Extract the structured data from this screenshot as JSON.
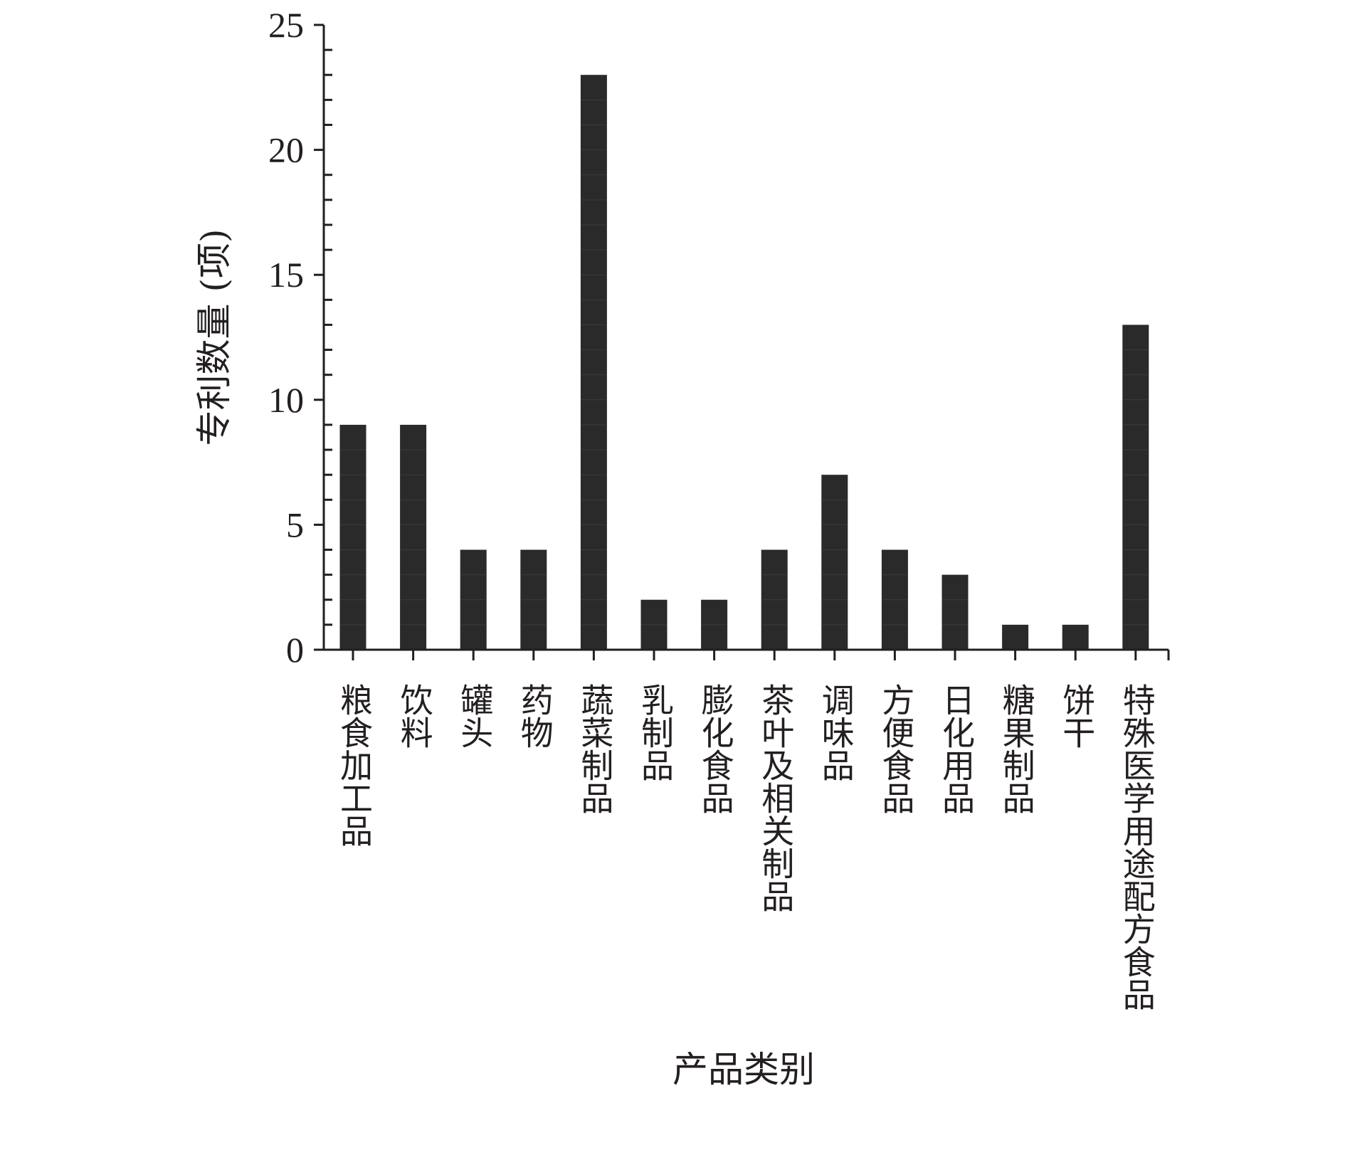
{
  "chart_data": {
    "type": "bar",
    "title": "",
    "xlabel": "产品类别",
    "ylabel": "专利数量 (项)",
    "ylim": [
      0,
      25
    ],
    "yticks": [
      0,
      5,
      10,
      15,
      20,
      25
    ],
    "grid": false,
    "categories": [
      "粮食加工品",
      "饮料",
      "罐头",
      "药物",
      "蔬菜制品",
      "乳制品",
      "膨化食品",
      "茶叶及相关制品",
      "调味品",
      "方便食品",
      "日化用品",
      "糖果制品",
      "饼干",
      "特殊医学用途配方食品"
    ],
    "values": [
      9,
      9,
      4,
      4,
      23,
      2,
      2,
      4,
      7,
      4,
      3,
      1,
      1,
      13
    ],
    "colors": {
      "bar": "#2b2a2b",
      "axis": "#231f20"
    }
  }
}
